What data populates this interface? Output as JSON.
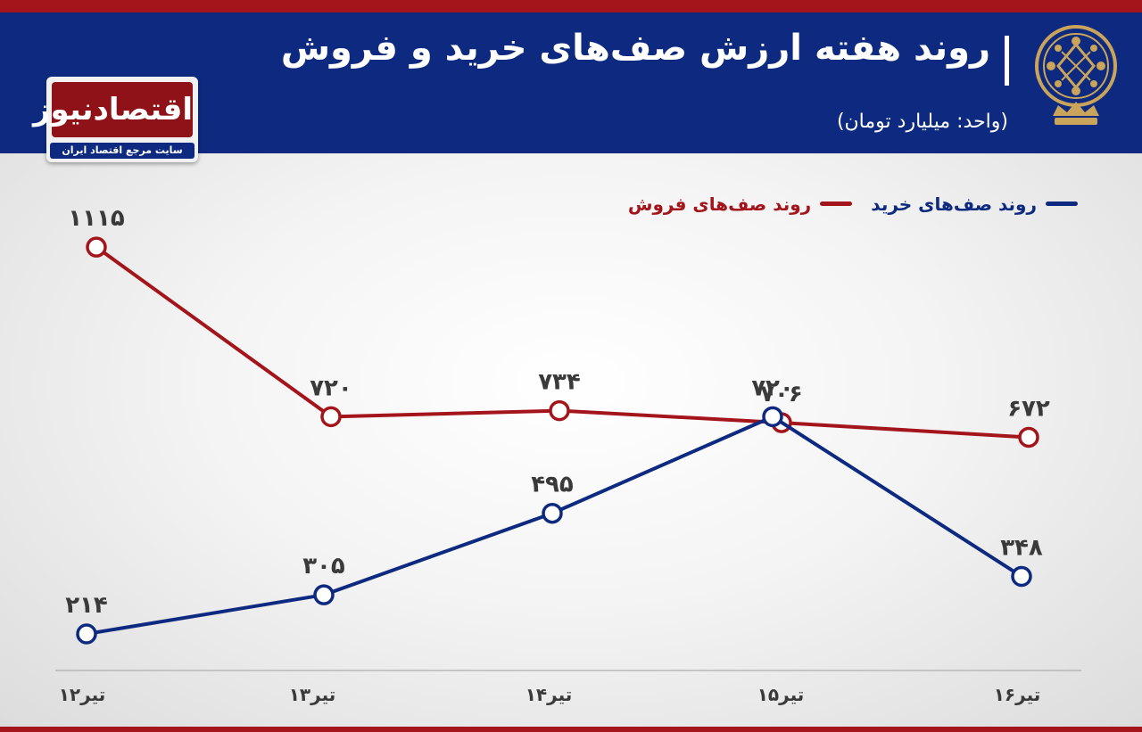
{
  "header": {
    "title": "روند هفته ارزش صف‌های خرید و فروش",
    "subtitle": "(واحد: میلیارد تومان)"
  },
  "logo": {
    "name": "اقتصادنیوز",
    "tagline": "سایت مرجع اقتصاد ایران"
  },
  "colors": {
    "header_bg": "#0d2a80",
    "accent_red": "#a3151b",
    "buy_line": "#0d2a80",
    "sell_line": "#a3151b"
  },
  "chart_data": {
    "type": "line",
    "title": "روند هفته ارزش صف‌های خرید و فروش",
    "subtitle": "(واحد: میلیارد تومان)",
    "categories": [
      "۱۲تیر",
      "۱۳تیر",
      "۱۴تیر",
      "۱۵تیر",
      "۱۶تیر"
    ],
    "series": [
      {
        "name": "روند صف‌های فروش",
        "color": "#a3151b",
        "values": [
          1115,
          720,
          734,
          706,
          672
        ],
        "labels": [
          "۱۱۱۵",
          "۷۲۰",
          "۷۳۴",
          "۷۰۶",
          "۶۷۲"
        ]
      },
      {
        "name": "روند صف‌های خرید",
        "color": "#0d2a80",
        "values": [
          214,
          305,
          495,
          720,
          348
        ],
        "labels": [
          "۲۱۴",
          "۳۰۵",
          "۴۹۵",
          "۷۲۰",
          "۳۴۸"
        ]
      }
    ],
    "legend_position": "top-right",
    "grid": false
  }
}
